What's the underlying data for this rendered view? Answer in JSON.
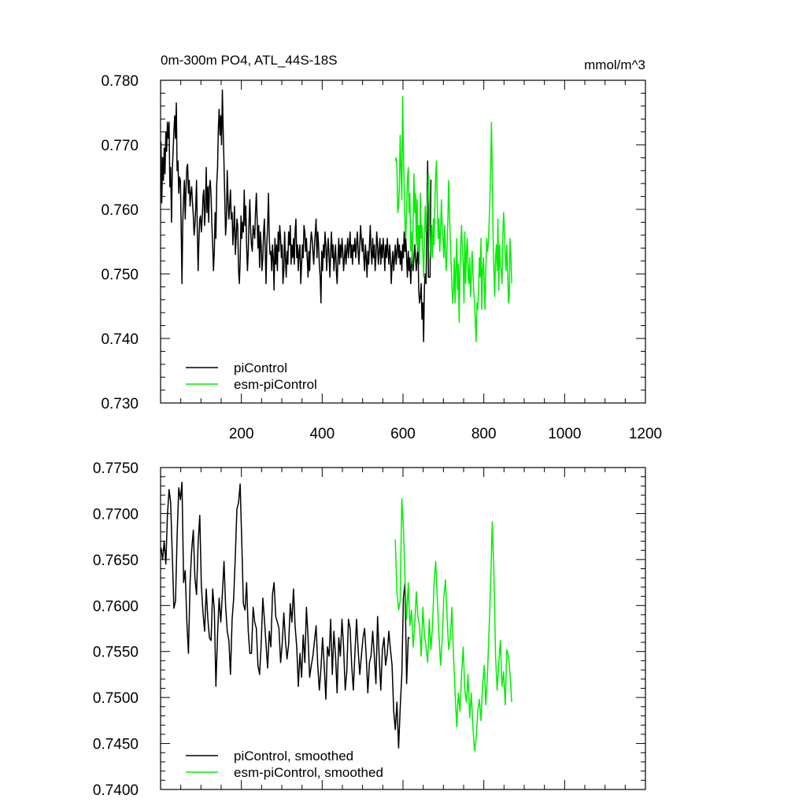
{
  "chart_data": [
    {
      "type": "line",
      "title": "0m-300m PO4, ATL_44S-18S",
      "units": "mmol/m^3",
      "xlim": [
        0,
        1200
      ],
      "ylim": [
        0.73,
        0.78
      ],
      "xticks": [
        200,
        400,
        600,
        800,
        1000,
        1200
      ],
      "xtick_labels": [
        "200",
        "400",
        "600",
        "800",
        "1000",
        "1200"
      ],
      "yticks": [
        0.73,
        0.74,
        0.75,
        0.76,
        0.77,
        0.78
      ],
      "ytick_labels": [
        "0.730",
        "0.740",
        "0.750",
        "0.760",
        "0.770",
        "0.780"
      ],
      "legend_position": "bottom-left",
      "series": [
        {
          "name": "piControl",
          "color": "#000000",
          "x_start": 1,
          "x_step": 2,
          "values": [
            0.7705,
            0.761,
            0.768,
            0.7645,
            0.7695,
            0.7655,
            0.772,
            0.769,
            0.7735,
            0.771,
            0.7735,
            0.7635,
            0.7665,
            0.758,
            0.766,
            0.769,
            0.772,
            0.7745,
            0.771,
            0.7765,
            0.766,
            0.7675,
            0.7625,
            0.765,
            0.7645,
            0.757,
            0.7485,
            0.758,
            0.762,
            0.7645,
            0.7585,
            0.763,
            0.7665,
            0.767,
            0.7625,
            0.7645,
            0.7605,
            0.7625,
            0.7635,
            0.761,
            0.759,
            0.756,
            0.7575,
            0.7605,
            0.7645,
            0.7565,
            0.7505,
            0.7555,
            0.7585,
            0.759,
            0.7565,
            0.7585,
            0.762,
            0.763,
            0.7575,
            0.7605,
            0.7665,
            0.7595,
            0.7635,
            0.758,
            0.7635,
            0.7645,
            0.762,
            0.7575,
            0.7545,
            0.7505,
            0.7535,
            0.7595,
            0.7555,
            0.764,
            0.7665,
            0.7725,
            0.7755,
            0.7715,
            0.7745,
            0.77,
            0.7785,
            0.772,
            0.767,
            0.7615,
            0.756,
            0.7585,
            0.766,
            0.7615,
            0.7585,
            0.7605,
            0.763,
            0.7585,
            0.7595,
            0.7545,
            0.757,
            0.7605,
            0.753,
            0.7555,
            0.7585,
            0.7575,
            0.7505,
            0.7485,
            0.752,
            0.759,
            0.7555,
            0.758,
            0.7565,
            0.763,
            0.7575,
            0.7605,
            0.7545,
            0.7505,
            0.7535,
            0.758,
            0.7615,
            0.7565,
            0.7545,
            0.7535,
            0.7575,
            0.7565,
            0.7555,
            0.7595,
            0.7625,
            0.7585,
            0.754,
            0.7575,
            0.751,
            0.7565,
            0.7545,
            0.7505,
            0.7525,
            0.7565,
            0.7585,
            0.7535,
            0.7485,
            0.7545,
            0.7575,
            0.7625,
            0.7555,
            0.753,
            0.7535,
            0.7505,
            0.7545,
            0.7525,
            0.7475,
            0.7555,
            0.7515,
            0.7545,
            0.7505,
            0.7565,
            0.7535,
            0.7575,
            0.7555,
            0.7525,
            0.7545,
            0.7485,
            0.7505,
            0.7565,
            0.7525,
            0.7495,
            0.7535,
            0.7515,
            0.7565,
            0.7545,
            0.7575,
            0.7515,
            0.7545,
            0.7525,
            0.7555,
            0.7515,
            0.7565,
            0.7585,
            0.7525,
            0.7545,
            0.7505,
            0.7535,
            0.7545,
            0.7485,
            0.7515,
            0.7545,
            0.7525,
            0.7575,
            0.7565,
            0.7535,
            0.7555,
            0.7525,
            0.7495,
            0.7535,
            0.7505,
            0.7545,
            0.7565,
            0.7555,
            0.7535,
            0.7515,
            0.7545,
            0.7565,
            0.7585,
            0.7525,
            0.7565,
            0.7545,
            0.7515,
            0.7495,
            0.7455,
            0.7535,
            0.7505,
            0.7545,
            0.7525,
            0.7565,
            0.7545,
            0.7505,
            0.7535,
            0.7555,
            0.7525,
            0.7495,
            0.7535,
            0.7565,
            0.7525,
            0.7545,
            0.7505,
            0.7525,
            0.7545,
            0.7505,
            0.7485,
            0.7525,
            0.7555,
            0.7515,
            0.7545,
            0.7525,
            0.7555,
            0.7535,
            0.7505,
            0.7525,
            0.7545,
            0.7515,
            0.7535,
            0.7555,
            0.7525,
            0.7545,
            0.7565,
            0.7525,
            0.7545,
            0.7515,
            0.7545,
            0.7535,
            0.7555,
            0.7525,
            0.7545,
            0.7565,
            0.7535,
            0.7515,
            0.7545,
            0.7575,
            0.7555,
            0.7535,
            0.7555,
            0.7525,
            0.7505,
            0.7545,
            0.7525,
            0.7495,
            0.7535,
            0.7515,
            0.7545,
            0.7575,
            0.7535,
            0.7515,
            0.7555,
            0.7525,
            0.7545,
            0.7505,
            0.7525,
            0.7565,
            0.7545,
            0.7515,
            0.7535,
            0.7555,
            0.7515,
            0.7545,
            0.7525,
            0.7555,
            0.7535,
            0.7505,
            0.7545,
            0.7525,
            0.7555,
            0.7535,
            0.7515,
            0.7545,
            0.7525,
            0.7485,
            0.7515,
            0.7535,
            0.7505,
            0.7525,
            0.7545,
            0.7515,
            0.7535,
            0.7555,
            0.7525,
            0.7545,
            0.7515,
            0.7535,
            0.7505,
            0.7545,
            0.7525,
            0.7565,
            0.7535,
            0.7555,
            0.7525,
            0.7495,
            0.7535,
            0.7505,
            0.7525,
            0.7485,
            0.7515,
            0.7535,
            0.7505,
            0.7525,
            0.7545,
            0.7525,
            0.7505,
            0.7525,
            0.7545,
            0.7475,
            0.7455,
            0.7465,
            0.7485,
            0.743,
            0.7455,
            0.7395,
            0.748,
            0.75,
            0.7485,
            0.7575,
            0.7675,
            0.7495,
            0.7495,
            0.7495,
            0.7645,
            0.7645
          ]
        },
        {
          "name": "esm-piControl",
          "color": "#00ee00",
          "x_start": 581,
          "x_step": 2,
          "values": [
            0.7675,
            0.768,
            0.7665,
            0.7595,
            0.7605,
            0.7635,
            0.7715,
            0.7665,
            0.7615,
            0.7775,
            0.7695,
            0.7635,
            0.7575,
            0.7555,
            0.7605,
            0.7645,
            0.7665,
            0.7595,
            0.7625,
            0.7535,
            0.7565,
            0.7515,
            0.7575,
            0.7655,
            0.7595,
            0.7625,
            0.7545,
            0.7615,
            0.7535,
            0.7575,
            0.7515,
            0.7625,
            0.7555,
            0.7575,
            0.7535,
            0.7495,
            0.7545,
            0.7605,
            0.7565,
            0.7585,
            0.7615,
            0.7655,
            0.7595,
            0.7545,
            0.7525,
            0.7575,
            0.7525,
            0.7585,
            0.7545,
            0.7615,
            0.7655,
            0.7675,
            0.7605,
            0.7555,
            0.7585,
            0.7535,
            0.7565,
            0.7615,
            0.7575,
            0.7555,
            0.7525,
            0.7575,
            0.7535,
            0.7505,
            0.7545,
            0.7585,
            0.7645,
            0.7595,
            0.7555,
            0.7515,
            0.7485,
            0.7455,
            0.7475,
            0.7525,
            0.7455,
            0.7505,
            0.7555,
            0.7475,
            0.7515,
            0.7425,
            0.7505,
            0.7545,
            0.7575,
            0.7535,
            0.7515,
            0.7455,
            0.7565,
            0.7485,
            0.7535,
            0.7555,
            0.7505,
            0.7485,
            0.7525,
            0.7465,
            0.7495,
            0.7535,
            0.7505,
            0.7475,
            0.7455,
            0.7425,
            0.7395,
            0.7455,
            0.7445,
            0.7475,
            0.7525,
            0.7495,
            0.7555,
            0.7445,
            0.7505,
            0.7525,
            0.7485,
            0.7445,
            0.7505,
            0.7555,
            0.7535,
            0.7545,
            0.7575,
            0.7615,
            0.7665,
            0.7735,
            0.7655,
            0.7555,
            0.7505,
            0.7465,
            0.7525,
            0.7545,
            0.7505,
            0.7585,
            0.7475,
            0.7545,
            0.7515,
            0.7505,
            0.7485,
            0.7555,
            0.7595,
            0.7575,
            0.7525,
            0.7505,
            0.7545,
            0.7505,
            0.7455,
            0.7465,
            0.7555,
            0.7525,
            0.7485
          ]
        }
      ]
    },
    {
      "type": "line",
      "title": "",
      "xlim": [
        0,
        1200
      ],
      "ylim": [
        0.74,
        0.775
      ],
      "xticks": [
        200,
        400,
        600,
        800,
        1000,
        1200
      ],
      "yticks": [
        0.74,
        0.745,
        0.75,
        0.755,
        0.76,
        0.765,
        0.77,
        0.775
      ],
      "ytick_labels": [
        "0.7400",
        "0.7450",
        "0.7500",
        "0.7550",
        "0.7600",
        "0.7650",
        "0.7700",
        "0.7750"
      ],
      "legend_position": "bottom-left",
      "series": [
        {
          "name": "piControl, smoothed",
          "color": "#000000",
          "x_start": 1,
          "x_step": 4,
          "values": [
            0.7663,
            0.765,
            0.767,
            0.7645,
            0.7698,
            0.7726,
            0.7712,
            0.7655,
            0.7597,
            0.7605,
            0.7675,
            0.7728,
            0.7715,
            0.7734,
            0.7625,
            0.7638,
            0.7582,
            0.7548,
            0.7625,
            0.766,
            0.7682,
            0.763,
            0.7612,
            0.7668,
            0.7698,
            0.7622,
            0.7592,
            0.7572,
            0.7618,
            0.7585,
            0.7565,
            0.7562,
            0.7618,
            0.7595,
            0.7512,
            0.7568,
            0.7608,
            0.7582,
            0.7612,
            0.7648,
            0.76,
            0.7572,
            0.7562,
            0.7525,
            0.7585,
            0.7608,
            0.7655,
            0.7705,
            0.7712,
            0.7732,
            0.7668,
            0.7602,
            0.7595,
            0.7625,
            0.7572,
            0.7548,
            0.7548,
            0.7598,
            0.7582,
            0.7575,
            0.7535,
            0.7525,
            0.7558,
            0.7608,
            0.7585,
            0.7558,
            0.7532,
            0.7572,
            0.7555,
            0.7612,
            0.7625,
            0.7588,
            0.7582,
            0.7575,
            0.7538,
            0.7558,
            0.7592,
            0.7562,
            0.7542,
            0.7558,
            0.7602,
            0.7582,
            0.7618,
            0.7578,
            0.7555,
            0.7512,
            0.7548,
            0.7522,
            0.7568,
            0.7538,
            0.7598,
            0.7565,
            0.7522,
            0.7535,
            0.7545,
            0.7562,
            0.7578,
            0.7535,
            0.7508,
            0.7532,
            0.7565,
            0.7535,
            0.7498,
            0.7555,
            0.7545,
            0.7585,
            0.7525,
            0.7572,
            0.7545,
            0.7505,
            0.7565,
            0.7545,
            0.7585,
            0.7555,
            0.7508,
            0.7528,
            0.7585,
            0.7575,
            0.7535,
            0.7508,
            0.7548,
            0.7585,
            0.7552,
            0.7525,
            0.7545,
            0.7565,
            0.7575,
            0.7545,
            0.7505,
            0.7538,
            0.7545,
            0.7572,
            0.7545,
            0.7515,
            0.7588,
            0.7545,
            0.7508,
            0.7552,
            0.7565,
            0.7535,
            0.7548,
            0.7572,
            0.7552,
            0.7535,
            0.7485,
            0.7465,
            0.7495,
            0.7445,
            0.7488,
            0.7525,
            0.7608,
            0.7625,
            0.7515,
            0.7565,
            0.7565
          ]
        },
        {
          "name": "esm-piControl, smoothed",
          "color": "#00ee00",
          "x_start": 581,
          "x_step": 4,
          "values": [
            0.7672,
            0.7615,
            0.7595,
            0.7605,
            0.7716,
            0.7685,
            0.7628,
            0.7585,
            0.7625,
            0.7578,
            0.7595,
            0.7555,
            0.7578,
            0.7615,
            0.7588,
            0.7578,
            0.7545,
            0.7598,
            0.7568,
            0.7555,
            0.7538,
            0.7585,
            0.7552,
            0.7578,
            0.7625,
            0.7648,
            0.7608,
            0.7568,
            0.7535,
            0.7562,
            0.7608,
            0.7628,
            0.7588,
            0.7552,
            0.7565,
            0.7598,
            0.7545,
            0.7505,
            0.7468,
            0.7505,
            0.7485,
            0.7525,
            0.7555,
            0.7508,
            0.7495,
            0.7525,
            0.7478,
            0.7505,
            0.7468,
            0.7442,
            0.7455,
            0.7485,
            0.7498,
            0.7475,
            0.7512,
            0.7535,
            0.7492,
            0.7525,
            0.7572,
            0.7625,
            0.7691,
            0.7635,
            0.7545,
            0.7508,
            0.7538,
            0.7562,
            0.7512,
            0.7528,
            0.7492,
            0.7552,
            0.7545,
            0.7525,
            0.7495
          ]
        }
      ]
    }
  ]
}
